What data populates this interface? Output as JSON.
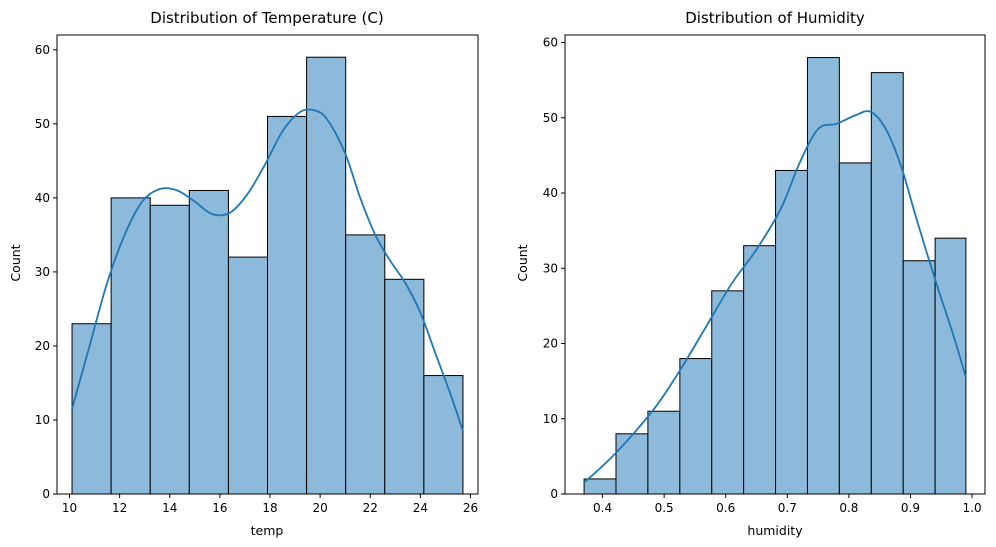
{
  "chart_data": [
    {
      "type": "bar",
      "title": "Distribution of Temperature (C)",
      "xlabel": "temp",
      "ylabel": "Count",
      "bin_edges": [
        10.1,
        11.66,
        13.22,
        14.78,
        16.34,
        17.9,
        19.46,
        21.02,
        22.58,
        24.14,
        25.7
      ],
      "values": [
        23,
        40,
        39,
        41,
        32,
        51,
        59,
        35,
        29,
        16
      ],
      "xlim": [
        9.5,
        26.3
      ],
      "ylim": [
        0,
        62
      ],
      "xticks": [
        10,
        12,
        14,
        16,
        18,
        20,
        22,
        24,
        26
      ],
      "yticks": [
        0,
        10,
        20,
        30,
        40,
        50,
        60
      ],
      "kde": {
        "x": [
          10.1,
          10.8,
          11.5,
          12.2,
          12.9,
          13.6,
          14.3,
          15.0,
          15.7,
          16.4,
          17.1,
          17.8,
          18.5,
          19.2,
          19.8,
          20.3,
          21.0,
          21.6,
          22.2,
          22.8,
          23.4,
          24.0,
          24.6,
          25.2,
          25.7
        ],
        "y": [
          11.5,
          20,
          28.5,
          35,
          39.5,
          41.2,
          41,
          39.5,
          37.8,
          38,
          40.5,
          44.5,
          49,
          51.6,
          51.8,
          50.5,
          46,
          40,
          35,
          31.5,
          28.5,
          24.5,
          19,
          13.5,
          8.5
        ]
      },
      "bar_color": "#8db9db",
      "line_color": "#1f77b4"
    },
    {
      "type": "bar",
      "title": "Distribution of Humidity",
      "xlabel": "humidity",
      "ylabel": "Count",
      "bin_edges": [
        0.37,
        0.4218,
        0.4736,
        0.5255,
        0.5773,
        0.6291,
        0.6809,
        0.7327,
        0.7845,
        0.8364,
        0.8882,
        0.94,
        0.99
      ],
      "values": [
        2,
        8,
        11,
        18,
        27,
        33,
        43,
        58,
        44,
        56,
        31,
        34
      ],
      "xlim": [
        0.339,
        1.021
      ],
      "ylim": [
        0,
        61
      ],
      "xticks": [
        0.4,
        0.5,
        0.6,
        0.7,
        0.8,
        0.9,
        1.0
      ],
      "xtick_labels": [
        "0.4",
        "0.5",
        "0.6",
        "0.7",
        "0.8",
        "0.9",
        "1.0"
      ],
      "yticks": [
        0,
        10,
        20,
        30,
        40,
        50,
        60
      ],
      "kde": {
        "x": [
          0.37,
          0.41,
          0.45,
          0.49,
          0.53,
          0.57,
          0.61,
          0.65,
          0.69,
          0.72,
          0.75,
          0.78,
          0.81,
          0.835,
          0.86,
          0.885,
          0.91,
          0.94,
          0.97,
          0.99
        ],
        "y": [
          1.5,
          4.5,
          8,
          12,
          17,
          22.5,
          28,
          32.5,
          38,
          44,
          48.5,
          49.2,
          50.3,
          50.8,
          48.5,
          43.5,
          36.5,
          28.5,
          21,
          15.5
        ]
      },
      "bar_color": "#8db9db",
      "line_color": "#1f77b4"
    }
  ]
}
